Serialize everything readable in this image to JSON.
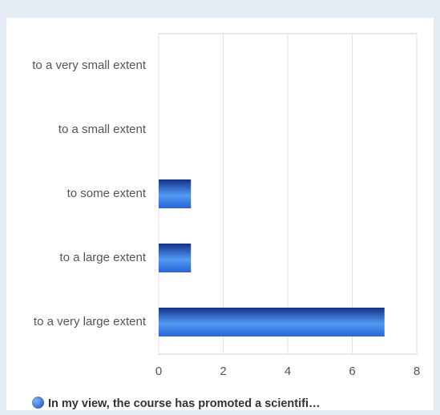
{
  "chart_data": {
    "type": "bar",
    "orientation": "horizontal",
    "categories": [
      "to a very small extent",
      "to a small extent",
      "to some extent",
      "to a large extent",
      "to a very large extent"
    ],
    "series": [
      {
        "name": "In my view, the course has promoted a scientifi…",
        "color": "#2a63d8",
        "values": [
          0,
          0,
          1,
          1,
          7
        ]
      }
    ],
    "xlim": [
      0,
      8
    ],
    "xticks": [
      0,
      2,
      4,
      6,
      8
    ],
    "grid": true,
    "legend": "bottom"
  }
}
